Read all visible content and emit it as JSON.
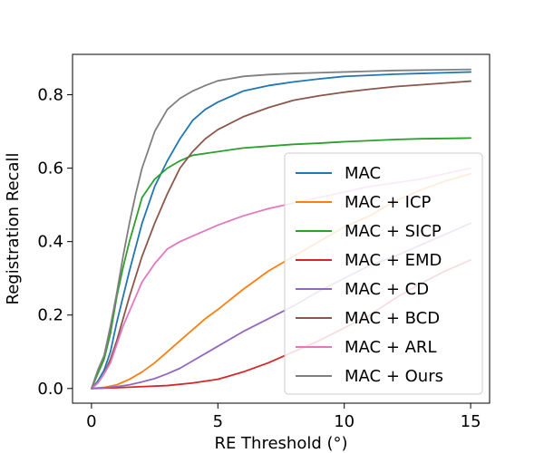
{
  "chart_data": {
    "type": "line",
    "title": "",
    "xlabel": "RE Threshold (°)",
    "ylabel": "Registration Recall",
    "xlim": [
      -0.75,
      15.75
    ],
    "ylim": [
      -0.04,
      0.91
    ],
    "xticks": [
      0,
      5,
      10,
      15
    ],
    "xtick_labels": [
      "0",
      "5",
      "10",
      "15"
    ],
    "yticks": [
      0.0,
      0.2,
      0.4,
      0.6,
      0.8
    ],
    "ytick_labels": [
      "0.0",
      "0.2",
      "0.4",
      "0.6",
      "0.8"
    ],
    "legend_position": "lower-right",
    "series": [
      {
        "name": "MAC",
        "color": "#1f77b4",
        "x": [
          0,
          0.25,
          0.5,
          0.75,
          1,
          1.25,
          1.5,
          2,
          2.5,
          3,
          3.5,
          4,
          4.5,
          5,
          6,
          7,
          8,
          9,
          10,
          11,
          12,
          13,
          14,
          15
        ],
        "y": [
          0,
          0.02,
          0.05,
          0.1,
          0.18,
          0.25,
          0.32,
          0.45,
          0.55,
          0.62,
          0.68,
          0.73,
          0.76,
          0.78,
          0.81,
          0.825,
          0.835,
          0.843,
          0.85,
          0.853,
          0.856,
          0.858,
          0.86,
          0.862
        ]
      },
      {
        "name": "MAC + ICP",
        "color": "#ff7f0e",
        "x": [
          0,
          0.5,
          1,
          1.5,
          2,
          2.5,
          3,
          3.5,
          4,
          4.5,
          5,
          6,
          7,
          8,
          9,
          10,
          11,
          12,
          13,
          14,
          15
        ],
        "y": [
          0,
          0.003,
          0.01,
          0.025,
          0.045,
          0.07,
          0.1,
          0.13,
          0.16,
          0.19,
          0.215,
          0.27,
          0.32,
          0.36,
          0.4,
          0.44,
          0.47,
          0.51,
          0.54,
          0.565,
          0.585
        ]
      },
      {
        "name": "MAC + SICP",
        "color": "#2ca02c",
        "x": [
          0,
          0.25,
          0.5,
          0.75,
          1,
          1.25,
          1.5,
          2,
          2.5,
          3,
          3.5,
          4,
          5,
          6,
          7,
          8,
          9,
          10,
          11,
          12,
          13,
          14,
          15
        ],
        "y": [
          0,
          0.04,
          0.08,
          0.15,
          0.25,
          0.33,
          0.4,
          0.52,
          0.57,
          0.6,
          0.62,
          0.635,
          0.645,
          0.655,
          0.66,
          0.665,
          0.668,
          0.672,
          0.675,
          0.678,
          0.68,
          0.681,
          0.682
        ]
      },
      {
        "name": "MAC + EMD",
        "color": "#d62728",
        "x": [
          0,
          1,
          2,
          3,
          4,
          5,
          6,
          7,
          7.5,
          8,
          9,
          10,
          11,
          12,
          13,
          14,
          15
        ],
        "y": [
          0,
          0.002,
          0.005,
          0.008,
          0.015,
          0.025,
          0.045,
          0.07,
          0.085,
          0.1,
          0.13,
          0.165,
          0.2,
          0.245,
          0.285,
          0.32,
          0.35
        ]
      },
      {
        "name": "MAC + CD",
        "color": "#9467bd",
        "x": [
          0,
          0.5,
          1,
          1.5,
          2,
          2.5,
          3,
          3.5,
          4,
          4.5,
          5,
          6,
          7,
          8,
          9,
          10,
          11,
          12,
          13,
          14,
          15
        ],
        "y": [
          0,
          0.002,
          0.005,
          0.01,
          0.018,
          0.027,
          0.04,
          0.055,
          0.075,
          0.095,
          0.115,
          0.155,
          0.19,
          0.225,
          0.265,
          0.3,
          0.335,
          0.36,
          0.39,
          0.42,
          0.45
        ]
      },
      {
        "name": "MAC + BCD",
        "color": "#8c564b",
        "x": [
          0,
          0.25,
          0.5,
          0.75,
          1,
          1.25,
          1.5,
          2,
          2.5,
          3,
          3.5,
          4,
          4.5,
          5,
          6,
          7,
          8,
          9,
          10,
          11,
          12,
          13,
          14,
          15
        ],
        "y": [
          0,
          0.015,
          0.04,
          0.08,
          0.13,
          0.19,
          0.25,
          0.36,
          0.45,
          0.53,
          0.6,
          0.645,
          0.68,
          0.705,
          0.74,
          0.765,
          0.785,
          0.797,
          0.807,
          0.815,
          0.822,
          0.827,
          0.832,
          0.837
        ]
      },
      {
        "name": "MAC + ARL",
        "color": "#e377c2",
        "x": [
          0,
          0.25,
          0.5,
          0.75,
          1,
          1.25,
          1.5,
          2,
          2.5,
          3,
          3.5,
          4,
          4.5,
          5,
          6,
          7,
          8,
          9,
          10,
          11,
          12,
          13,
          14,
          15
        ],
        "y": [
          0,
          0.015,
          0.04,
          0.07,
          0.12,
          0.17,
          0.21,
          0.29,
          0.34,
          0.38,
          0.4,
          0.415,
          0.43,
          0.445,
          0.47,
          0.49,
          0.505,
          0.52,
          0.535,
          0.55,
          0.56,
          0.57,
          0.585,
          0.6
        ]
      },
      {
        "name": "MAC + Ours",
        "color": "#7f7f7f",
        "x": [
          0,
          0.25,
          0.5,
          0.75,
          1,
          1.25,
          1.5,
          1.75,
          2,
          2.5,
          3,
          3.5,
          4,
          4.5,
          5,
          6,
          7,
          8,
          9,
          10,
          11,
          12,
          13,
          14,
          15
        ],
        "y": [
          0,
          0.05,
          0.09,
          0.17,
          0.26,
          0.36,
          0.45,
          0.53,
          0.6,
          0.7,
          0.76,
          0.79,
          0.81,
          0.825,
          0.838,
          0.85,
          0.855,
          0.858,
          0.86,
          0.862,
          0.864,
          0.866,
          0.867,
          0.868,
          0.869
        ]
      }
    ]
  }
}
